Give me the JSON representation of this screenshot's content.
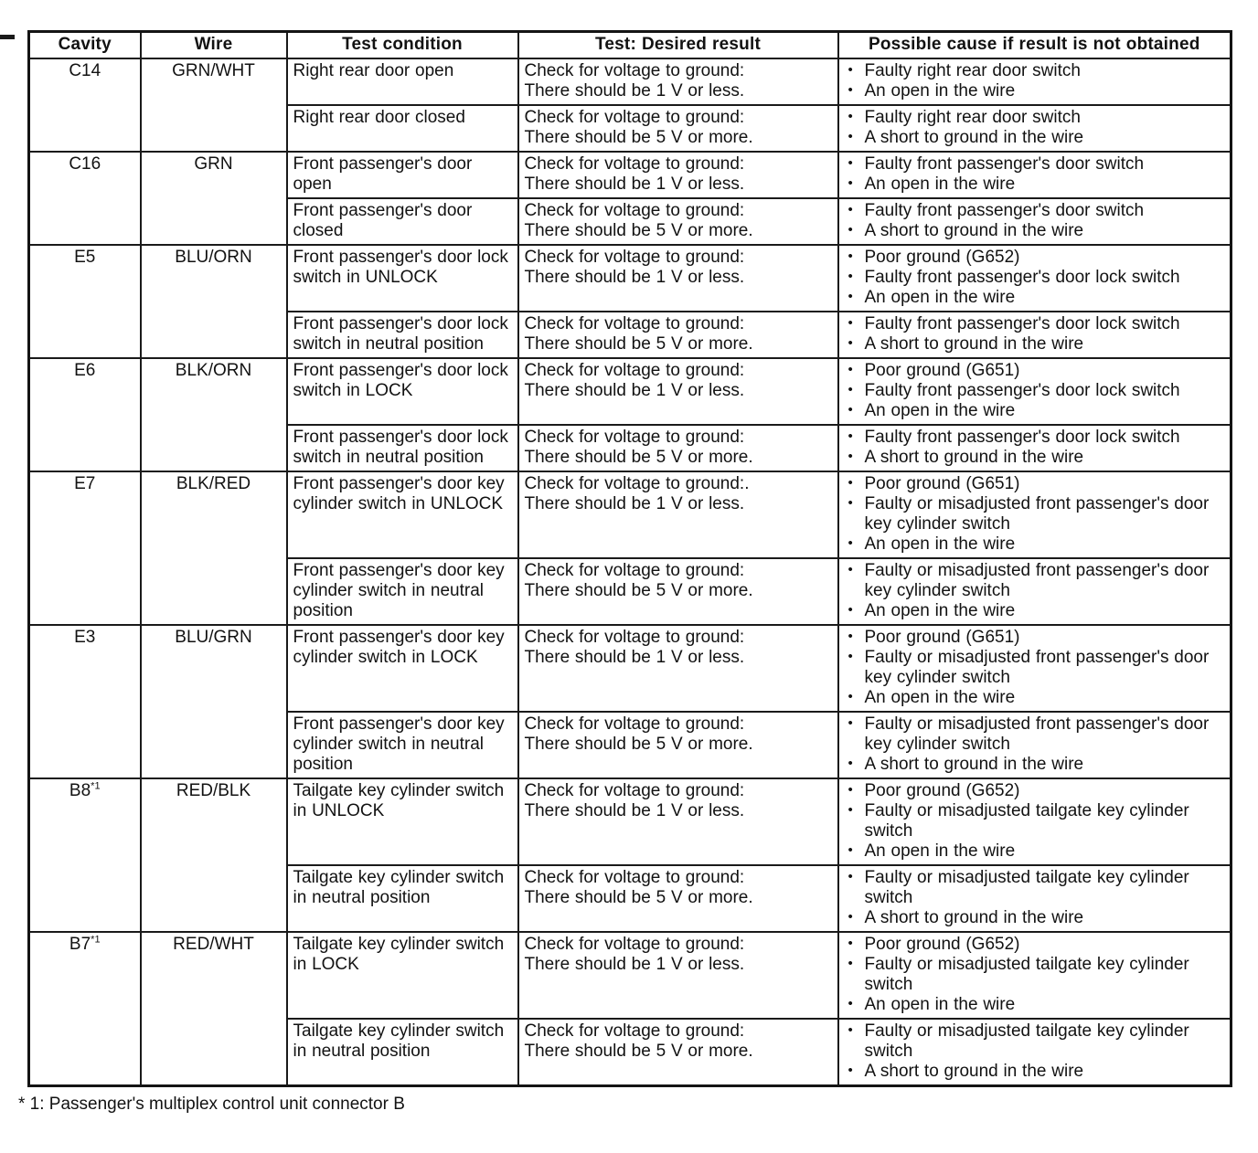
{
  "meta": {
    "bullet": "•"
  },
  "table": {
    "headers": [
      "Cavity",
      "Wire",
      "Test condition",
      "Test: Desired result",
      "Possible cause if result is not obtained"
    ],
    "rows": [
      {
        "cavity": "C14",
        "cavity_sup": "",
        "wire": "GRN/WHT",
        "tests": [
          {
            "condition": "Right rear door open",
            "result_lines": [
              "Check for voltage to ground:",
              "There should be 1 V or less."
            ],
            "causes": [
              "Faulty right rear door switch",
              "An open in the wire"
            ]
          },
          {
            "condition": "Right rear door closed",
            "result_lines": [
              "Check for voltage to ground:",
              "There should be 5 V or more."
            ],
            "causes": [
              "Faulty right rear door switch",
              "A short to ground in the wire"
            ]
          }
        ]
      },
      {
        "cavity": "C16",
        "cavity_sup": "",
        "wire": "GRN",
        "tests": [
          {
            "condition": "Front passenger's door open",
            "result_lines": [
              "Check for voltage to ground:",
              "There should be 1 V or less."
            ],
            "causes": [
              "Faulty front passenger's door switch",
              "An open in the wire"
            ]
          },
          {
            "condition": "Front passenger's door closed",
            "result_lines": [
              "Check for voltage to ground:",
              "There should be 5 V or more."
            ],
            "causes": [
              "Faulty front passenger's door switch",
              "A short to ground in the wire"
            ]
          }
        ]
      },
      {
        "cavity": "E5",
        "cavity_sup": "",
        "wire": "BLU/ORN",
        "tests": [
          {
            "condition": "Front passenger's door lock switch in UNLOCK",
            "result_lines": [
              "Check for voltage to ground:",
              "There should be 1 V or less."
            ],
            "causes": [
              "Poor ground (G652)",
              "Faulty front passenger's door lock switch",
              "An open in the wire"
            ]
          },
          {
            "condition": "Front passenger's door lock switch in neutral position",
            "result_lines": [
              "Check for voltage to ground:",
              "There should be 5 V or more."
            ],
            "causes": [
              "Faulty front passenger's door lock switch",
              "A short to ground in the wire"
            ]
          }
        ]
      },
      {
        "cavity": "E6",
        "cavity_sup": "",
        "wire": "BLK/ORN",
        "tests": [
          {
            "condition": "Front passenger's door lock switch in LOCK",
            "result_lines": [
              "Check for voltage to ground:",
              "There should be 1 V or less."
            ],
            "causes": [
              "Poor ground (G651)",
              "Faulty front passenger's door lock switch",
              "An open in the wire"
            ]
          },
          {
            "condition": "Front passenger's door lock switch in neutral position",
            "result_lines": [
              "Check for voltage to ground:",
              "There should be 5 V or more."
            ],
            "causes": [
              "Faulty front passenger's door lock switch",
              "A short to ground in the wire"
            ]
          }
        ]
      },
      {
        "cavity": "E7",
        "cavity_sup": "",
        "wire": "BLK/RED",
        "tests": [
          {
            "condition": "Front passenger's door key cylinder switch in UNLOCK",
            "result_lines": [
              "Check for voltage to ground:.",
              "There should be 1 V or less."
            ],
            "causes": [
              "Poor ground (G651)",
              "Faulty or misadjusted front passenger's door key cylinder switch",
              "An open in the wire"
            ]
          },
          {
            "condition": "Front passenger's door key cylinder switch in neutral position",
            "result_lines": [
              "Check for voltage to ground:",
              "There should be 5 V or more."
            ],
            "causes": [
              "Faulty or misadjusted front passenger's door key cylinder switch",
              "An open in the wire"
            ]
          }
        ]
      },
      {
        "cavity": "E3",
        "cavity_sup": "",
        "wire": "BLU/GRN",
        "tests": [
          {
            "condition": "Front passenger's door key cylinder switch in LOCK",
            "result_lines": [
              "Check for voltage to ground:",
              "There should be 1 V or less."
            ],
            "causes": [
              "Poor ground (G651)",
              "Faulty or misadjusted front passenger's door key cylinder switch",
              "An open in the wire"
            ]
          },
          {
            "condition": "Front passenger's door key cylinder switch in neutral position",
            "result_lines": [
              "Check for voltage to ground:",
              "There should be 5 V or more."
            ],
            "causes": [
              "Faulty or misadjusted front passenger's door key cylinder switch",
              "A short to ground in the wire"
            ]
          }
        ]
      },
      {
        "cavity": "B8",
        "cavity_sup": "*1",
        "wire": "RED/BLK",
        "tests": [
          {
            "condition": "Tailgate key cylinder switch in UNLOCK",
            "result_lines": [
              "Check for voltage to ground:",
              "There should be 1 V or less."
            ],
            "causes": [
              "Poor ground (G652)",
              "Faulty or misadjusted tailgate key cylinder switch",
              "An open in the wire"
            ]
          },
          {
            "condition": "Tailgate key cylinder switch in neutral position",
            "result_lines": [
              "Check for voltage to ground:",
              "There should be 5 V or more."
            ],
            "causes": [
              "Faulty or misadjusted tailgate key cylinder switch",
              "A short to ground in the wire"
            ]
          }
        ]
      },
      {
        "cavity": "B7",
        "cavity_sup": "*1",
        "wire": "RED/WHT",
        "tests": [
          {
            "condition": "Tailgate key cylinder switch in LOCK",
            "result_lines": [
              "Check for voltage to ground:",
              "There should be 1 V or less."
            ],
            "causes": [
              "Poor ground (G652)",
              "Faulty or misadjusted tailgate key cylinder switch",
              "An open in the wire"
            ]
          },
          {
            "condition": "Tailgate key cylinder switch in neutral position",
            "result_lines": [
              "Check for voltage to ground:",
              "There should be 5 V or more."
            ],
            "causes": [
              "Faulty or misadjusted tailgate key cylinder switch",
              "A short to ground in the wire"
            ]
          }
        ]
      }
    ],
    "footnote": "* 1: Passenger's multiplex control unit connector B"
  }
}
